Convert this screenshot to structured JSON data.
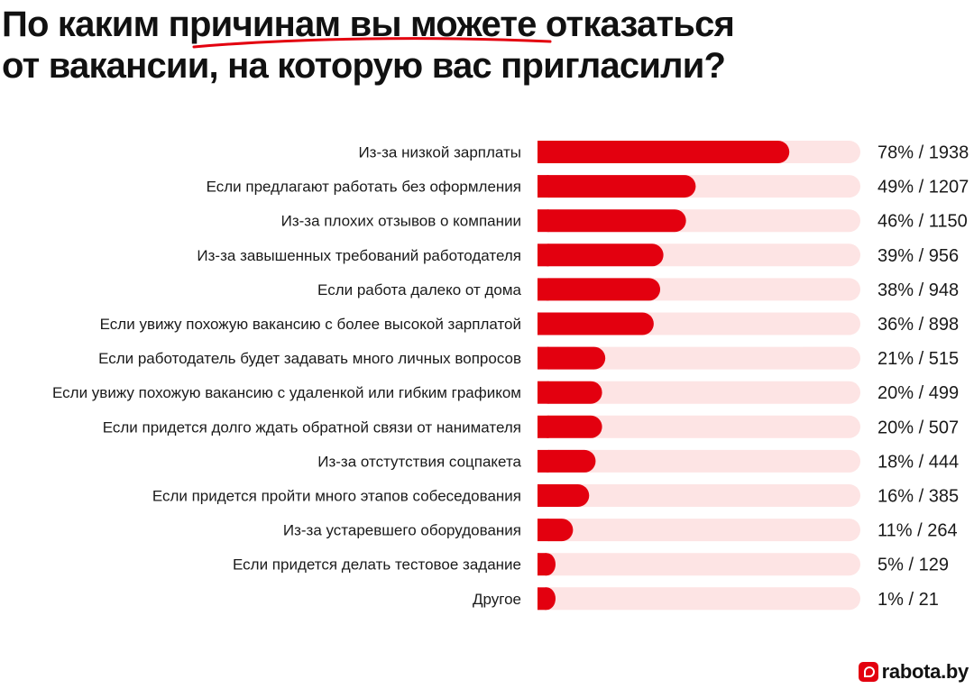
{
  "title": {
    "line1": "По каким причинам вы можете отказаться",
    "line2": "от вакансии, на которую вас пригласили?"
  },
  "brand": {
    "name": "rabota.by",
    "logo_icon": "rabota-logo-icon"
  },
  "colors": {
    "bar": "#e3000f",
    "track": "#fde4e4",
    "accent_underline": "#e3000f"
  },
  "chart_data": {
    "type": "bar",
    "orientation": "horizontal",
    "title": "По каким причинам вы можете отказаться от вакансии, на которую вас пригласили?",
    "xlim": [
      0,
      100
    ],
    "grid": false,
    "categories": [
      "Из-за низкой зарплаты",
      "Если предлагают работать без оформления",
      "Из-за плохих отзывов о компании",
      "Из-за завышенных требований работодателя",
      "Если работа далеко от дома",
      "Если увижу похожую вакансию с более высокой зарплатой",
      "Если работодатель будет задавать много личных вопросов",
      "Если увижу похожую вакансию с удаленкой или гибким графиком",
      "Если придется долго ждать обратной связи от нанимателя",
      "Из-за отстутствия соцпакета",
      "Если придется пройти много этапов собеседования",
      "Из-за устаревшего оборудования",
      "Если придется делать тестовое задание",
      "Другое"
    ],
    "values": [
      78,
      49,
      46,
      39,
      38,
      36,
      21,
      20,
      20,
      18,
      16,
      11,
      5,
      1
    ],
    "counts": [
      1938,
      1207,
      1150,
      956,
      948,
      898,
      515,
      499,
      507,
      444,
      385,
      264,
      129,
      21
    ],
    "value_labels": [
      "78% / 1938",
      "49% / 1207",
      "46% / 1150",
      "39% / 956",
      "38% / 948",
      "36% / 898",
      "21% / 515",
      "20% / 499",
      "20% / 507",
      "18% / 444",
      "16% / 385",
      "11% / 264",
      "5% / 129",
      "1% / 21"
    ]
  }
}
